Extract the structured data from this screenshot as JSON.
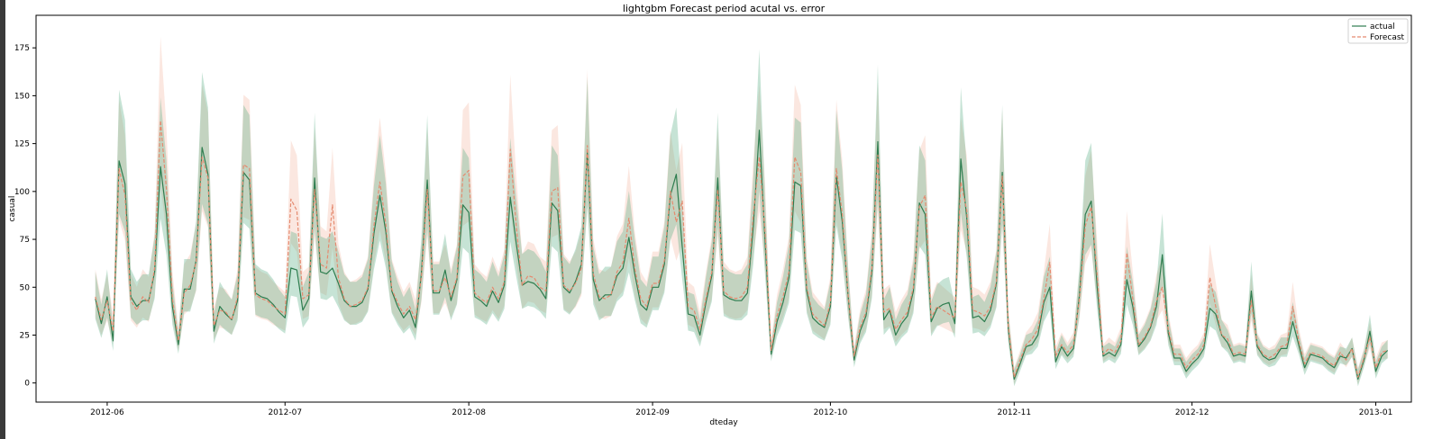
{
  "chart_data": {
    "type": "line",
    "title": "lightgbm Forecast period acutal vs. error",
    "xlabel": "dteday",
    "ylabel": "casual",
    "ylim": [
      -10,
      192
    ],
    "yticks": [
      0,
      25,
      50,
      75,
      100,
      125,
      150,
      175
    ],
    "xlim": [
      "2012-05-20",
      "2013-01-07"
    ],
    "xticks": [
      "2012-06",
      "2012-07",
      "2012-08",
      "2012-09",
      "2012-10",
      "2012-11",
      "2012-12",
      "2013-01"
    ],
    "grid": false,
    "legend": "top-right",
    "x_start": "2012-05-30",
    "x_end": "2012-12-31",
    "series": [
      {
        "name": "actual",
        "color": "#2e7d4f",
        "band_color": "#4fa77c",
        "style": "solid",
        "values": [
          44,
          31,
          45,
          22,
          116,
          104,
          45,
          40,
          43,
          43,
          58,
          113,
          88,
          40,
          20,
          49,
          49,
          64,
          123,
          109,
          27,
          40,
          36,
          33,
          43,
          110,
          106,
          47,
          45,
          44,
          41,
          37,
          34,
          60,
          59,
          38,
          44,
          107,
          58,
          57,
          60,
          52,
          43,
          40,
          40,
          42,
          49,
          78,
          98,
          79,
          48,
          40,
          34,
          38,
          29,
          57,
          106,
          47,
          47,
          59,
          43,
          54,
          93,
          89,
          45,
          43,
          40,
          48,
          42,
          51,
          97,
          73,
          51,
          53,
          52,
          49,
          44,
          94,
          90,
          50,
          47,
          53,
          62,
          121,
          54,
          43,
          46,
          46,
          56,
          60,
          76,
          57,
          41,
          38,
          50,
          50,
          62,
          98,
          109,
          71,
          36,
          35,
          25,
          42,
          56,
          107,
          46,
          44,
          43,
          43,
          47,
          82,
          132,
          73,
          15,
          32,
          42,
          55,
          105,
          103,
          48,
          34,
          31,
          29,
          40,
          108,
          84,
          45,
          12,
          27,
          35,
          58,
          126,
          33,
          38,
          25,
          31,
          35,
          48,
          94,
          88,
          32,
          39,
          41,
          42,
          31,
          117,
          86,
          34,
          35,
          32,
          38,
          52,
          110,
          28,
          2,
          10,
          19,
          20,
          25,
          42,
          50,
          11,
          19,
          14,
          18,
          46,
          88,
          95,
          50,
          14,
          16,
          14,
          20,
          54,
          40,
          19,
          23,
          29,
          40,
          67,
          26,
          13,
          13,
          6,
          10,
          13,
          18,
          39,
          36,
          25,
          21,
          14,
          15,
          14,
          48,
          19,
          14,
          12,
          13,
          18,
          18,
          32,
          20,
          8,
          15,
          14,
          13,
          10,
          8,
          14,
          13,
          18,
          2,
          12,
          27,
          6,
          14,
          17
        ]
      },
      {
        "name": "Forecast",
        "color": "#e58a6f",
        "band_color": "#f2b49e",
        "style": "dashed",
        "values": [
          45,
          33,
          43,
          27,
          112,
          98,
          43,
          38,
          45,
          42,
          60,
          137,
          101,
          44,
          22,
          47,
          51,
          63,
          118,
          107,
          30,
          38,
          37,
          33,
          45,
          114,
          112,
          46,
          44,
          43,
          40,
          38,
          36,
          96,
          90,
          44,
          46,
          101,
          62,
          60,
          93,
          55,
          44,
          40,
          41,
          43,
          50,
          82,
          105,
          83,
          49,
          42,
          36,
          40,
          33,
          55,
          101,
          48,
          48,
          55,
          45,
          55,
          108,
          111,
          47,
          44,
          42,
          50,
          44,
          53,
          122,
          82,
          51,
          56,
          55,
          50,
          48,
          100,
          102,
          51,
          48,
          52,
          60,
          124,
          57,
          45,
          44,
          46,
          58,
          63,
          86,
          60,
          44,
          40,
          52,
          52,
          64,
          100,
          84,
          95,
          40,
          38,
          28,
          44,
          58,
          101,
          48,
          45,
          44,
          45,
          50,
          88,
          118,
          78,
          17,
          35,
          45,
          58,
          118,
          110,
          50,
          36,
          33,
          30,
          42,
          112,
          88,
          46,
          14,
          29,
          37,
          60,
          119,
          37,
          39,
          28,
          33,
          37,
          50,
          92,
          98,
          34,
          40,
          38,
          36,
          34,
          105,
          90,
          38,
          37,
          35,
          40,
          53,
          108,
          30,
          3,
          12,
          20,
          23,
          28,
          44,
          63,
          14,
          20,
          16,
          20,
          44,
          82,
          92,
          56,
          15,
          18,
          16,
          22,
          68,
          44,
          20,
          24,
          30,
          43,
          50,
          28,
          15,
          15,
          8,
          12,
          15,
          20,
          55,
          40,
          25,
          23,
          15,
          16,
          15,
          43,
          20,
          15,
          13,
          15,
          19,
          20,
          40,
          22,
          10,
          16,
          15,
          14,
          11,
          9,
          16,
          12,
          18,
          3,
          13,
          24,
          8,
          16,
          17
        ]
      }
    ]
  }
}
